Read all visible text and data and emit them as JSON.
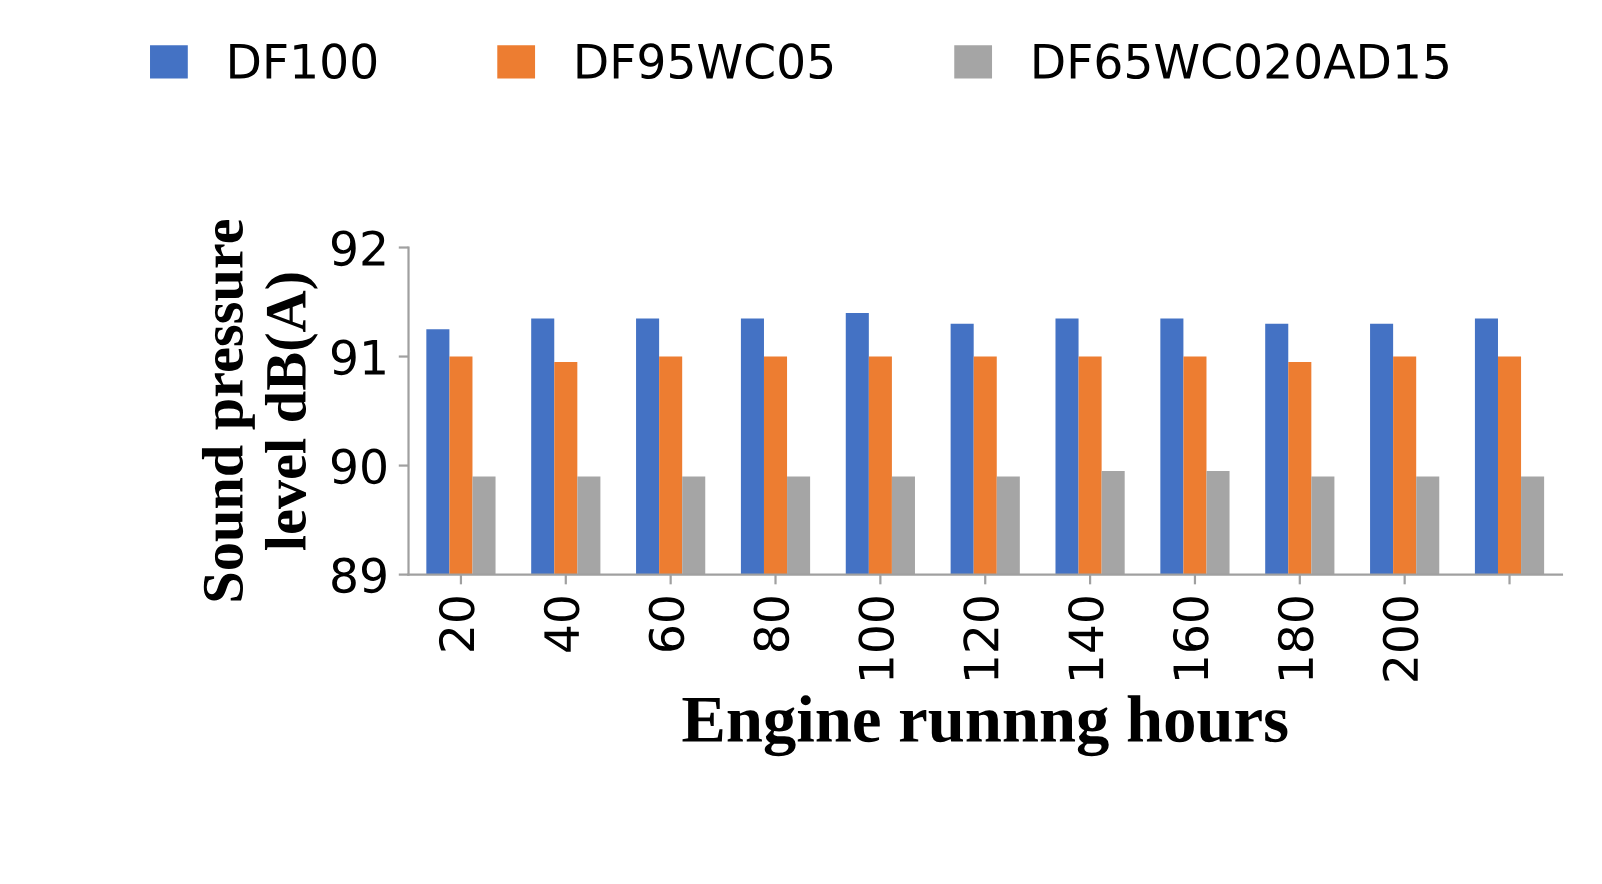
{
  "chart_data": {
    "type": "bar",
    "xlabel": "Engine runnng hours",
    "ylabel": "Sound pressure\nlevel dB(A)",
    "categories": [
      "20",
      "40",
      "60",
      "80",
      "100",
      "120",
      "140",
      "160",
      "180",
      "200",
      null
    ],
    "series": [
      {
        "name": "DF100",
        "color": "#4472c4",
        "values": [
          91.25,
          91.35,
          91.35,
          91.35,
          91.4,
          91.3,
          91.35,
          91.35,
          91.3,
          91.3,
          91.35
        ]
      },
      {
        "name": "DF95WC05",
        "color": "#ed7d31",
        "values": [
          91.0,
          90.95,
          91.0,
          91.0,
          91.0,
          91.0,
          91.0,
          91.0,
          90.95,
          91.0,
          91.0
        ]
      },
      {
        "name": "DF65WC020AD15",
        "color": "#a5a5a5",
        "values": [
          89.9,
          89.9,
          89.9,
          89.9,
          89.9,
          89.9,
          89.95,
          89.95,
          89.9,
          89.9,
          89.9
        ]
      }
    ],
    "ylim": [
      89,
      92
    ],
    "yticks": [
      89,
      90,
      91,
      92
    ],
    "grid": false,
    "legend": "top"
  }
}
